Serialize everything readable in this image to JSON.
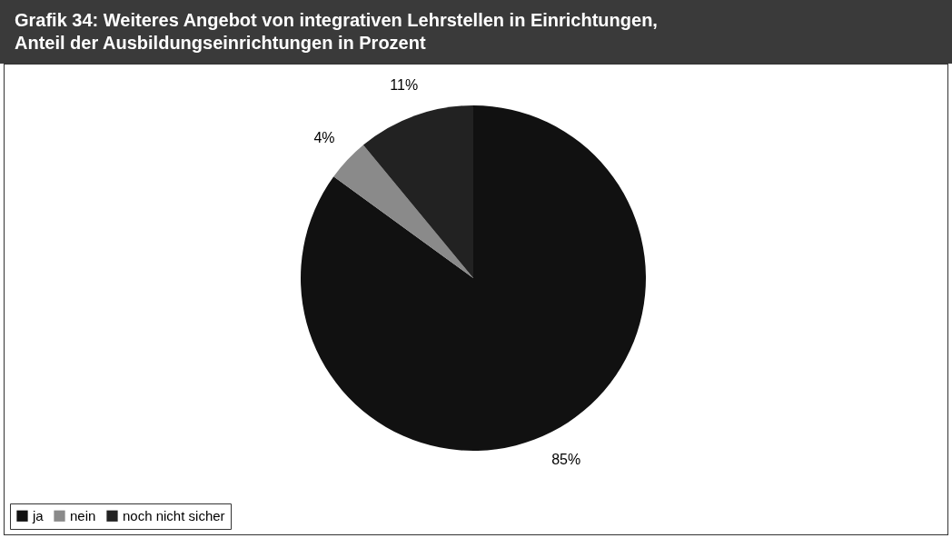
{
  "chart_data": {
    "type": "pie",
    "title": "Grafik 34: Weiteres Angebot von integrativen Lehrstellen in Einrichtungen,\nAnteil der Ausbildungseinrichtungen in Prozent",
    "categories": [
      "ja",
      "nein",
      "noch nicht sicher"
    ],
    "values": [
      85,
      4,
      11
    ],
    "colors": [
      "#111111",
      "#8a8a8a",
      "#222222"
    ],
    "value_labels": [
      "85%",
      "4%",
      "11%"
    ],
    "legend": "bottom"
  }
}
